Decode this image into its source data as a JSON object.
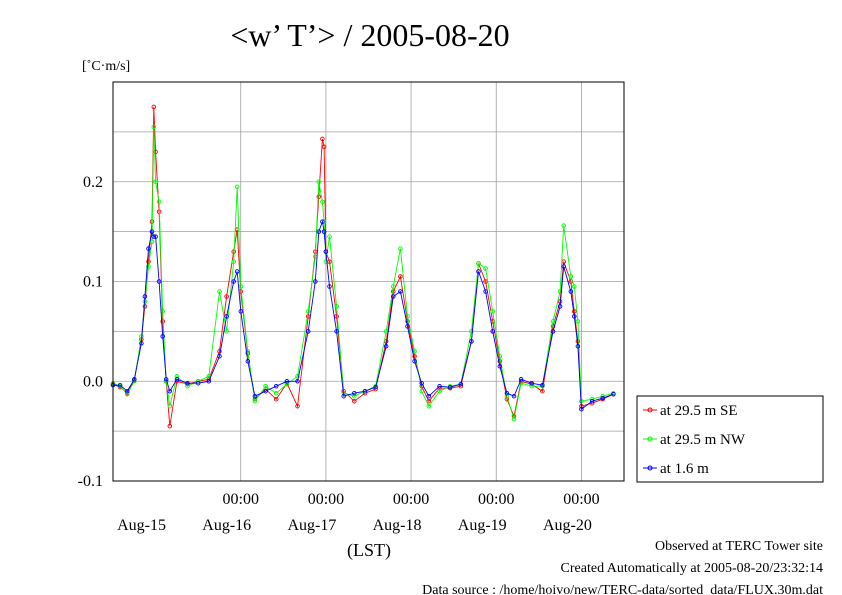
{
  "chart_data": {
    "type": "line",
    "title": "<w’ T’> / 2005-08-20",
    "ylabel": "[˚C·m/s]",
    "xlabel": "(LST)",
    "ylim": [
      -0.1,
      0.3
    ],
    "yticks": [
      {
        "value": -0.1,
        "label": "-0.1"
      },
      {
        "value": 0.0,
        "label": "0.0"
      },
      {
        "value": 0.1,
        "label": "0.1"
      },
      {
        "value": 0.2,
        "label": "0.2"
      }
    ],
    "xlim": [
      "2005-08-14 12:00",
      "2005-08-20 12:00"
    ],
    "x_time_ticks": [
      "00:00",
      "00:00",
      "00:00",
      "00:00",
      "00:00"
    ],
    "x_date_labels": [
      "Aug-15",
      "Aug-16",
      "Aug-17",
      "Aug-18",
      "Aug-19",
      "Aug-20"
    ],
    "grid": true,
    "legend_position": "right",
    "series": [
      {
        "name": "at 29.5 m SE",
        "color": "#ff0000",
        "points": [
          [
            "2005-08-14 12:00",
            -0.003
          ],
          [
            "2005-08-14 14:00",
            -0.006
          ],
          [
            "2005-08-14 16:00",
            -0.012
          ],
          [
            "2005-08-14 18:00",
            0.001
          ],
          [
            "2005-08-14 20:00",
            0.042
          ],
          [
            "2005-08-14 21:00",
            0.075
          ],
          [
            "2005-08-14 22:00",
            0.12
          ],
          [
            "2005-08-14 23:00",
            0.16
          ],
          [
            "2005-08-14 23:30",
            0.275
          ],
          [
            "2005-08-15 00:00",
            0.23
          ],
          [
            "2005-08-15 01:00",
            0.17
          ],
          [
            "2005-08-15 02:00",
            0.06
          ],
          [
            "2005-08-15 03:00",
            0.0
          ],
          [
            "2005-08-15 04:00",
            -0.045
          ],
          [
            "2005-08-15 06:00",
            0.0
          ],
          [
            "2005-08-15 09:00",
            -0.003
          ],
          [
            "2005-08-15 12:00",
            0.0
          ],
          [
            "2005-08-15 15:00",
            0.002
          ],
          [
            "2005-08-15 18:00",
            0.03
          ],
          [
            "2005-08-15 20:00",
            0.085
          ],
          [
            "2005-08-15 22:00",
            0.13
          ],
          [
            "2005-08-15 23:00",
            0.152
          ],
          [
            "2005-08-16 00:00",
            0.09
          ],
          [
            "2005-08-16 02:00",
            0.028
          ],
          [
            "2005-08-16 04:00",
            -0.018
          ],
          [
            "2005-08-16 07:00",
            -0.008
          ],
          [
            "2005-08-16 10:00",
            -0.018
          ],
          [
            "2005-08-16 13:00",
            -0.002
          ],
          [
            "2005-08-16 16:00",
            -0.025
          ],
          [
            "2005-08-16 19:00",
            0.065
          ],
          [
            "2005-08-16 21:00",
            0.13
          ],
          [
            "2005-08-16 22:00",
            0.185
          ],
          [
            "2005-08-16 23:00",
            0.243
          ],
          [
            "2005-08-16 23:30",
            0.235
          ],
          [
            "2005-08-17 00:00",
            0.13
          ],
          [
            "2005-08-17 01:00",
            0.12
          ],
          [
            "2005-08-17 03:00",
            0.065
          ],
          [
            "2005-08-17 05:00",
            -0.01
          ],
          [
            "2005-08-17 08:00",
            -0.02
          ],
          [
            "2005-08-17 11:00",
            -0.012
          ],
          [
            "2005-08-17 14:00",
            -0.008
          ],
          [
            "2005-08-17 17:00",
            0.04
          ],
          [
            "2005-08-17 19:00",
            0.09
          ],
          [
            "2005-08-17 21:00",
            0.105
          ],
          [
            "2005-08-17 23:00",
            0.06
          ],
          [
            "2005-08-18 01:00",
            0.025
          ],
          [
            "2005-08-18 03:00",
            -0.005
          ],
          [
            "2005-08-18 05:00",
            -0.02
          ],
          [
            "2005-08-18 08:00",
            -0.007
          ],
          [
            "2005-08-18 11:00",
            -0.007
          ],
          [
            "2005-08-18 14:00",
            -0.005
          ],
          [
            "2005-08-18 17:00",
            0.04
          ],
          [
            "2005-08-18 19:00",
            0.118
          ],
          [
            "2005-08-18 21:00",
            0.1
          ],
          [
            "2005-08-18 23:00",
            0.06
          ],
          [
            "2005-08-19 01:00",
            0.02
          ],
          [
            "2005-08-19 03:00",
            -0.018
          ],
          [
            "2005-08-19 05:00",
            -0.035
          ],
          [
            "2005-08-19 07:00",
            0.0
          ],
          [
            "2005-08-19 10:00",
            -0.003
          ],
          [
            "2005-08-19 13:00",
            -0.01
          ],
          [
            "2005-08-19 16:00",
            0.055
          ],
          [
            "2005-08-19 18:00",
            0.08
          ],
          [
            "2005-08-19 19:00",
            0.12
          ],
          [
            "2005-08-19 21:00",
            0.1
          ],
          [
            "2005-08-19 22:00",
            0.07
          ],
          [
            "2005-08-19 23:00",
            0.04
          ],
          [
            "2005-08-20 00:00",
            -0.025
          ],
          [
            "2005-08-20 03:00",
            -0.022
          ],
          [
            "2005-08-20 06:00",
            -0.018
          ],
          [
            "2005-08-20 09:00",
            -0.013
          ]
        ]
      },
      {
        "name": "at 29.5 m NW",
        "color": "#00ff00",
        "points": [
          [
            "2005-08-14 12:00",
            -0.002
          ],
          [
            "2005-08-14 14:00",
            -0.005
          ],
          [
            "2005-08-14 16:00",
            -0.013
          ],
          [
            "2005-08-14 18:00",
            0.0
          ],
          [
            "2005-08-14 20:00",
            0.045
          ],
          [
            "2005-08-14 21:00",
            0.08
          ],
          [
            "2005-08-14 22:00",
            0.115
          ],
          [
            "2005-08-14 23:00",
            0.14
          ],
          [
            "2005-08-14 23:30",
            0.255
          ],
          [
            "2005-08-15 00:00",
            0.2
          ],
          [
            "2005-08-15 01:00",
            0.18
          ],
          [
            "2005-08-15 02:00",
            0.07
          ],
          [
            "2005-08-15 03:00",
            0.0
          ],
          [
            "2005-08-15 04:00",
            -0.025
          ],
          [
            "2005-08-15 06:00",
            0.005
          ],
          [
            "2005-08-15 09:00",
            -0.005
          ],
          [
            "2005-08-15 12:00",
            0.0
          ],
          [
            "2005-08-15 15:00",
            0.005
          ],
          [
            "2005-08-15 18:00",
            0.09
          ],
          [
            "2005-08-15 20:00",
            0.05
          ],
          [
            "2005-08-15 22:00",
            0.12
          ],
          [
            "2005-08-15 23:00",
            0.195
          ],
          [
            "2005-08-16 00:00",
            0.095
          ],
          [
            "2005-08-16 02:00",
            0.03
          ],
          [
            "2005-08-16 04:00",
            -0.02
          ],
          [
            "2005-08-16 07:00",
            -0.005
          ],
          [
            "2005-08-16 10:00",
            -0.012
          ],
          [
            "2005-08-16 13:00",
            -0.003
          ],
          [
            "2005-08-16 16:00",
            0.005
          ],
          [
            "2005-08-16 19:00",
            0.07
          ],
          [
            "2005-08-16 21:00",
            0.125
          ],
          [
            "2005-08-16 22:00",
            0.2
          ],
          [
            "2005-08-16 23:00",
            0.18
          ],
          [
            "2005-08-16 23:30",
            0.16
          ],
          [
            "2005-08-17 00:00",
            0.12
          ],
          [
            "2005-08-17 01:00",
            0.145
          ],
          [
            "2005-08-17 03:00",
            0.075
          ],
          [
            "2005-08-17 05:00",
            -0.012
          ],
          [
            "2005-08-17 08:00",
            -0.015
          ],
          [
            "2005-08-17 11:00",
            -0.01
          ],
          [
            "2005-08-17 14:00",
            -0.005
          ],
          [
            "2005-08-17 17:00",
            0.05
          ],
          [
            "2005-08-17 19:00",
            0.095
          ],
          [
            "2005-08-17 21:00",
            0.133
          ],
          [
            "2005-08-17 23:00",
            0.065
          ],
          [
            "2005-08-18 01:00",
            0.03
          ],
          [
            "2005-08-18 03:00",
            -0.01
          ],
          [
            "2005-08-18 05:00",
            -0.025
          ],
          [
            "2005-08-18 08:00",
            -0.01
          ],
          [
            "2005-08-18 11:00",
            -0.005
          ],
          [
            "2005-08-18 14:00",
            -0.003
          ],
          [
            "2005-08-18 17:00",
            0.05
          ],
          [
            "2005-08-18 19:00",
            0.118
          ],
          [
            "2005-08-18 21:00",
            0.113
          ],
          [
            "2005-08-18 23:00",
            0.07
          ],
          [
            "2005-08-19 01:00",
            0.025
          ],
          [
            "2005-08-19 03:00",
            -0.015
          ],
          [
            "2005-08-19 05:00",
            -0.038
          ],
          [
            "2005-08-19 07:00",
            -0.002
          ],
          [
            "2005-08-19 10:00",
            -0.005
          ],
          [
            "2005-08-19 13:00",
            -0.005
          ],
          [
            "2005-08-19 16:00",
            0.06
          ],
          [
            "2005-08-19 18:00",
            0.09
          ],
          [
            "2005-08-19 19:00",
            0.156
          ],
          [
            "2005-08-19 21:00",
            0.105
          ],
          [
            "2005-08-19 22:00",
            0.095
          ],
          [
            "2005-08-19 23:00",
            0.06
          ],
          [
            "2005-08-20 00:00",
            -0.02
          ],
          [
            "2005-08-20 03:00",
            -0.018
          ],
          [
            "2005-08-20 06:00",
            -0.015
          ],
          [
            "2005-08-20 09:00",
            -0.012
          ]
        ]
      },
      {
        "name": "at 1.6 m",
        "color": "#0000ff",
        "points": [
          [
            "2005-08-14 12:00",
            -0.004
          ],
          [
            "2005-08-14 14:00",
            -0.004
          ],
          [
            "2005-08-14 16:00",
            -0.01
          ],
          [
            "2005-08-14 18:00",
            0.002
          ],
          [
            "2005-08-14 20:00",
            0.038
          ],
          [
            "2005-08-14 21:00",
            0.085
          ],
          [
            "2005-08-14 22:00",
            0.133
          ],
          [
            "2005-08-14 23:00",
            0.15
          ],
          [
            "2005-08-14 23:30",
            0.145
          ],
          [
            "2005-08-15 00:00",
            0.145
          ],
          [
            "2005-08-15 01:00",
            0.1
          ],
          [
            "2005-08-15 02:00",
            0.045
          ],
          [
            "2005-08-15 03:00",
            0.002
          ],
          [
            "2005-08-15 04:00",
            -0.01
          ],
          [
            "2005-08-15 06:00",
            0.002
          ],
          [
            "2005-08-15 09:00",
            -0.002
          ],
          [
            "2005-08-15 12:00",
            -0.002
          ],
          [
            "2005-08-15 15:00",
            0.0
          ],
          [
            "2005-08-15 18:00",
            0.025
          ],
          [
            "2005-08-15 20:00",
            0.065
          ],
          [
            "2005-08-15 22:00",
            0.1
          ],
          [
            "2005-08-15 23:00",
            0.11
          ],
          [
            "2005-08-16 00:00",
            0.07
          ],
          [
            "2005-08-16 02:00",
            0.02
          ],
          [
            "2005-08-16 04:00",
            -0.015
          ],
          [
            "2005-08-16 07:00",
            -0.01
          ],
          [
            "2005-08-16 10:00",
            -0.005
          ],
          [
            "2005-08-16 13:00",
            0.0
          ],
          [
            "2005-08-16 16:00",
            0.0
          ],
          [
            "2005-08-16 19:00",
            0.05
          ],
          [
            "2005-08-16 21:00",
            0.1
          ],
          [
            "2005-08-16 22:00",
            0.15
          ],
          [
            "2005-08-16 23:00",
            0.16
          ],
          [
            "2005-08-16 23:30",
            0.15
          ],
          [
            "2005-08-17 00:00",
            0.13
          ],
          [
            "2005-08-17 01:00",
            0.095
          ],
          [
            "2005-08-17 03:00",
            0.05
          ],
          [
            "2005-08-17 05:00",
            -0.015
          ],
          [
            "2005-08-17 08:00",
            -0.012
          ],
          [
            "2005-08-17 11:00",
            -0.01
          ],
          [
            "2005-08-17 14:00",
            -0.006
          ],
          [
            "2005-08-17 17:00",
            0.035
          ],
          [
            "2005-08-17 19:00",
            0.085
          ],
          [
            "2005-08-17 21:00",
            0.09
          ],
          [
            "2005-08-17 23:00",
            0.055
          ],
          [
            "2005-08-18 01:00",
            0.02
          ],
          [
            "2005-08-18 03:00",
            -0.002
          ],
          [
            "2005-08-18 05:00",
            -0.015
          ],
          [
            "2005-08-18 08:00",
            -0.005
          ],
          [
            "2005-08-18 11:00",
            -0.006
          ],
          [
            "2005-08-18 14:00",
            -0.003
          ],
          [
            "2005-08-18 17:00",
            0.04
          ],
          [
            "2005-08-18 19:00",
            0.11
          ],
          [
            "2005-08-18 21:00",
            0.09
          ],
          [
            "2005-08-18 23:00",
            0.05
          ],
          [
            "2005-08-19 01:00",
            0.015
          ],
          [
            "2005-08-19 03:00",
            -0.012
          ],
          [
            "2005-08-19 05:00",
            -0.015
          ],
          [
            "2005-08-19 07:00",
            0.002
          ],
          [
            "2005-08-19 10:00",
            -0.002
          ],
          [
            "2005-08-19 13:00",
            -0.004
          ],
          [
            "2005-08-19 16:00",
            0.05
          ],
          [
            "2005-08-19 18:00",
            0.075
          ],
          [
            "2005-08-19 19:00",
            0.115
          ],
          [
            "2005-08-19 21:00",
            0.09
          ],
          [
            "2005-08-19 22:00",
            0.065
          ],
          [
            "2005-08-19 23:00",
            0.035
          ],
          [
            "2005-08-20 00:00",
            -0.028
          ],
          [
            "2005-08-20 03:00",
            -0.02
          ],
          [
            "2005-08-20 06:00",
            -0.017
          ],
          [
            "2005-08-20 09:00",
            -0.013
          ]
        ]
      }
    ]
  },
  "footer": {
    "line1": "Observed at TERC Tower site",
    "line2": "Created Automatically at 2005-08-20/23:32:14",
    "line3": "Data source : /home/hoivo/new/TERC-data/sorted_data/FLUX.30m.dat"
  }
}
